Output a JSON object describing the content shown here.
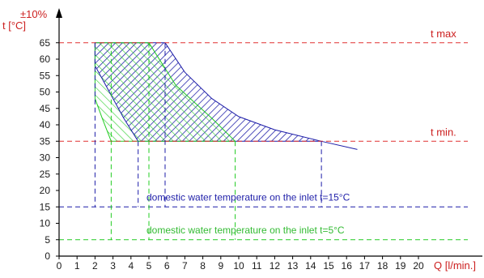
{
  "chart_data": {
    "type": "area",
    "xlabel": "Q [l/min.]",
    "ylabel": "t [°C]",
    "ylabel_tolerance": "±10%",
    "xlim": [
      0,
      21
    ],
    "ylim": [
      0,
      70
    ],
    "x_ticks": [
      0,
      1,
      2,
      3,
      4,
      5,
      6,
      7,
      8,
      9,
      10,
      11,
      12,
      13,
      14,
      15,
      16,
      17,
      18,
      19,
      20
    ],
    "y_ticks": [
      0,
      5,
      10,
      15,
      20,
      25,
      30,
      35,
      40,
      45,
      50,
      55,
      60,
      65
    ],
    "reference_lines": [
      {
        "label": "t max",
        "y": 65,
        "color": "#e03030"
      },
      {
        "label": "t min.",
        "y": 35,
        "color": "#e03030"
      },
      {
        "label": "",
        "y": 15,
        "color": "#1c1ca8"
      },
      {
        "label": "",
        "y": 5,
        "color": "#22cc22"
      }
    ],
    "annotations": [
      {
        "text": "domestic water temperature on the inlet t=15°C",
        "color": "#2222aa"
      },
      {
        "text": "domestic water temperature on the inlet t=5°C",
        "color": "#33bb33"
      }
    ],
    "series": [
      {
        "color": "#1c1ca8",
        "inlet_temperature": 15,
        "left_boundary": [
          [
            2.0,
            65
          ],
          [
            2.0,
            58
          ],
          [
            2.8,
            50
          ],
          [
            3.6,
            42
          ],
          [
            4.4,
            35
          ]
        ],
        "right_boundary": [
          [
            5.9,
            65
          ],
          [
            7.0,
            56
          ],
          [
            8.5,
            48
          ],
          [
            10.0,
            42.5
          ],
          [
            12.0,
            38.5
          ],
          [
            14.6,
            35
          ],
          [
            16.6,
            32.5
          ]
        ],
        "drop_lines_x": [
          2.0,
          4.4,
          5.9,
          14.6
        ]
      },
      {
        "color": "#22cc22",
        "inlet_temperature": 5,
        "left_boundary": [
          [
            2.0,
            65
          ],
          [
            2.0,
            48
          ],
          [
            2.4,
            42
          ],
          [
            2.9,
            35
          ]
        ],
        "right_boundary": [
          [
            5.0,
            65
          ],
          [
            6.5,
            52
          ],
          [
            8.5,
            42
          ],
          [
            9.8,
            35
          ]
        ],
        "drop_lines_x": [
          2.9,
          5.0,
          9.8
        ]
      }
    ]
  }
}
